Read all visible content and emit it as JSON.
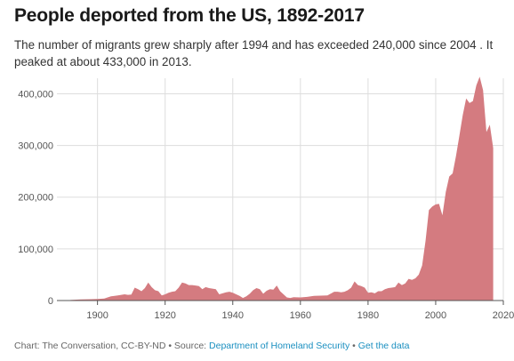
{
  "title": "People deported from the US, 1892-2017",
  "subtitle": "The number of migrants grew sharply after 1994 and has exceeded 240,000 since 2004 . It peaked at about 433,000 in 2013.",
  "footer": {
    "credit": "Chart: The Conversation, CC-BY-ND",
    "separator1": " • Source: ",
    "source_link": "Department of Homeland Security",
    "separator2": " • ",
    "data_link": "Get the data"
  },
  "colors": {
    "area": "#d47b80",
    "grid": "#dddddd",
    "axis": "#555555"
  },
  "chart_data": {
    "type": "area",
    "title": "People deported from the US, 1892-2017",
    "xlabel": "",
    "ylabel": "",
    "xlim": [
      1888,
      2020
    ],
    "ylim": [
      0,
      430000
    ],
    "grid": true,
    "x_ticks": [
      1900,
      1920,
      1940,
      1960,
      1980,
      2000,
      2020
    ],
    "x_tick_labels": [
      "1900",
      "1920",
      "1940",
      "1960",
      "1980",
      "2000",
      "2020"
    ],
    "y_ticks": [
      0,
      100000,
      200000,
      300000,
      400000
    ],
    "y_tick_labels": [
      "0",
      "100,000",
      "200,000",
      "300,000",
      "400,000"
    ],
    "x": [
      1892,
      1895,
      1898,
      1900,
      1902,
      1904,
      1906,
      1908,
      1909,
      1910,
      1911,
      1912,
      1913,
      1914,
      1915,
      1916,
      1917,
      1918,
      1919,
      1920,
      1921,
      1922,
      1923,
      1924,
      1925,
      1926,
      1927,
      1928,
      1929,
      1930,
      1931,
      1932,
      1933,
      1934,
      1935,
      1936,
      1937,
      1938,
      1939,
      1940,
      1941,
      1942,
      1943,
      1944,
      1945,
      1946,
      1947,
      1948,
      1949,
      1950,
      1951,
      1952,
      1953,
      1954,
      1955,
      1956,
      1957,
      1958,
      1960,
      1962,
      1964,
      1966,
      1968,
      1970,
      1971,
      1972,
      1973,
      1974,
      1975,
      1976,
      1977,
      1978,
      1979,
      1980,
      1981,
      1982,
      1983,
      1984,
      1985,
      1986,
      1987,
      1988,
      1989,
      1990,
      1991,
      1992,
      1993,
      1994,
      1995,
      1996,
      1997,
      1998,
      1999,
      2000,
      2001,
      2002,
      2003,
      2004,
      2005,
      2006,
      2007,
      2008,
      2009,
      2010,
      2011,
      2012,
      2013,
      2014,
      2015,
      2016,
      2017
    ],
    "y": [
      1000,
      2000,
      2500,
      3000,
      4000,
      8000,
      10000,
      12000,
      11000,
      11500,
      25000,
      22000,
      18000,
      24000,
      35000,
      26000,
      20000,
      18000,
      10000,
      12000,
      15000,
      17000,
      18000,
      25000,
      35000,
      33000,
      30000,
      30000,
      29000,
      28000,
      22000,
      26000,
      24000,
      23000,
      22000,
      12000,
      14000,
      16000,
      17000,
      15000,
      12000,
      9000,
      5000,
      8000,
      13000,
      20000,
      24000,
      22000,
      13000,
      19000,
      22000,
      21000,
      29000,
      18000,
      12000,
      6000,
      5000,
      6500,
      6000,
      7000,
      9000,
      9500,
      10000,
      17000,
      17000,
      16000,
      17000,
      20000,
      25000,
      37000,
      30000,
      28000,
      25000,
      15000,
      16000,
      14000,
      18000,
      18000,
      22000,
      24000,
      25000,
      26000,
      35000,
      30000,
      33000,
      42000,
      40000,
      43000,
      50000,
      68000,
      115000,
      175000,
      182000,
      186000,
      187000,
      165000,
      210000,
      240000,
      246000,
      280000,
      319000,
      359000,
      391000,
      382000,
      386000,
      416000,
      433000,
      407000,
      326000,
      340000,
      295000
    ]
  }
}
